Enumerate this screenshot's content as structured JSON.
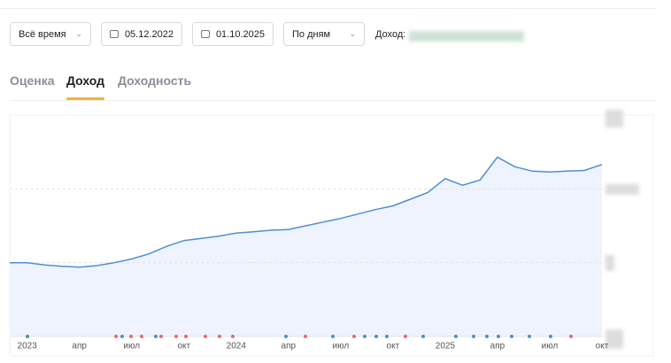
{
  "controls": {
    "period": "Всё время",
    "date_from": "05.12.2022",
    "date_to": "01.10.2025",
    "grouping": "По дням",
    "income_label": "Доход:"
  },
  "tabs": [
    "Оценка",
    "Доход",
    "Доходность"
  ],
  "chart_data": {
    "type": "line",
    "categories": [
      null,
      "2023",
      null,
      null,
      "апр",
      null,
      null,
      "июл",
      null,
      null,
      "окт",
      null,
      null,
      "2024",
      null,
      null,
      "апр",
      null,
      null,
      "июл",
      null,
      null,
      "окт",
      null,
      null,
      "2025",
      null,
      null,
      "апр",
      null,
      null,
      "июл",
      null,
      null,
      "окт"
    ],
    "values": [
      1.0,
      1.0,
      0.97,
      0.95,
      0.94,
      0.96,
      1.0,
      1.05,
      1.12,
      1.22,
      1.3,
      1.33,
      1.36,
      1.4,
      1.42,
      1.44,
      1.45,
      1.5,
      1.55,
      1.6,
      1.66,
      1.72,
      1.77,
      1.86,
      1.95,
      2.14,
      2.05,
      2.12,
      2.43,
      2.3,
      2.24,
      2.23,
      2.24,
      2.25,
      2.33
    ],
    "color": "#4f8fcf",
    "ylim": [
      0,
      3
    ],
    "yticks": [
      0,
      1,
      2
    ],
    "grid": true
  }
}
